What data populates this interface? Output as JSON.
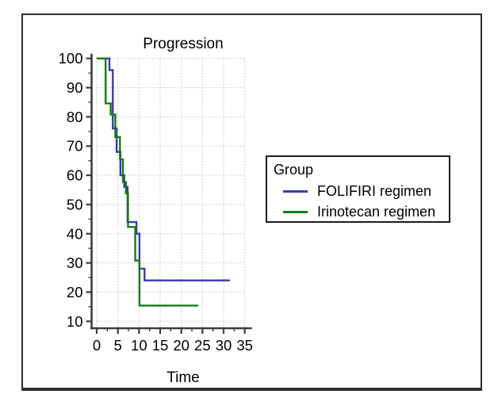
{
  "chart_data": {
    "type": "line",
    "subtype": "kaplan-meier-step",
    "title": "Progression",
    "xlabel": "Time",
    "ylabel": "",
    "grid": true,
    "xlim": [
      0,
      35
    ],
    "ylim": [
      10,
      100
    ],
    "x_ticks": [
      0,
      5,
      10,
      15,
      20,
      25,
      30,
      35
    ],
    "y_ticks": [
      10,
      20,
      30,
      40,
      50,
      60,
      70,
      80,
      90,
      100
    ],
    "x_minor_step": 2.5,
    "y_minor_step": 5,
    "legend": {
      "title": "Group",
      "position": "right-outside"
    },
    "colors": {
      "axis": "#3d3d3d",
      "grid": "#c2c2c2",
      "text": "#000000",
      "background": "#ffffff"
    },
    "series": [
      {
        "name": "FOLIFIRI regimen",
        "color": "#3b3bab",
        "steps": [
          [
            0,
            100
          ],
          [
            3,
            96
          ],
          [
            3.8,
            76
          ],
          [
            4.7,
            68
          ],
          [
            5.6,
            60
          ],
          [
            6.5,
            56
          ],
          [
            7.3,
            44
          ],
          [
            9.4,
            40
          ],
          [
            10.1,
            28
          ],
          [
            11.3,
            24
          ]
        ],
        "end_t": 31.5
      },
      {
        "name": "Irinotecan regimen",
        "color": "#137d13",
        "steps": [
          [
            0,
            100
          ],
          [
            2.1,
            84.6
          ],
          [
            3.3,
            80.8
          ],
          [
            4.4,
            73.1
          ],
          [
            5.5,
            65.4
          ],
          [
            6.2,
            57.7
          ],
          [
            6.9,
            53.8
          ],
          [
            7.4,
            42.3
          ],
          [
            9.1,
            30.8
          ],
          [
            10.1,
            15.4
          ]
        ],
        "end_t": 24
      }
    ]
  }
}
